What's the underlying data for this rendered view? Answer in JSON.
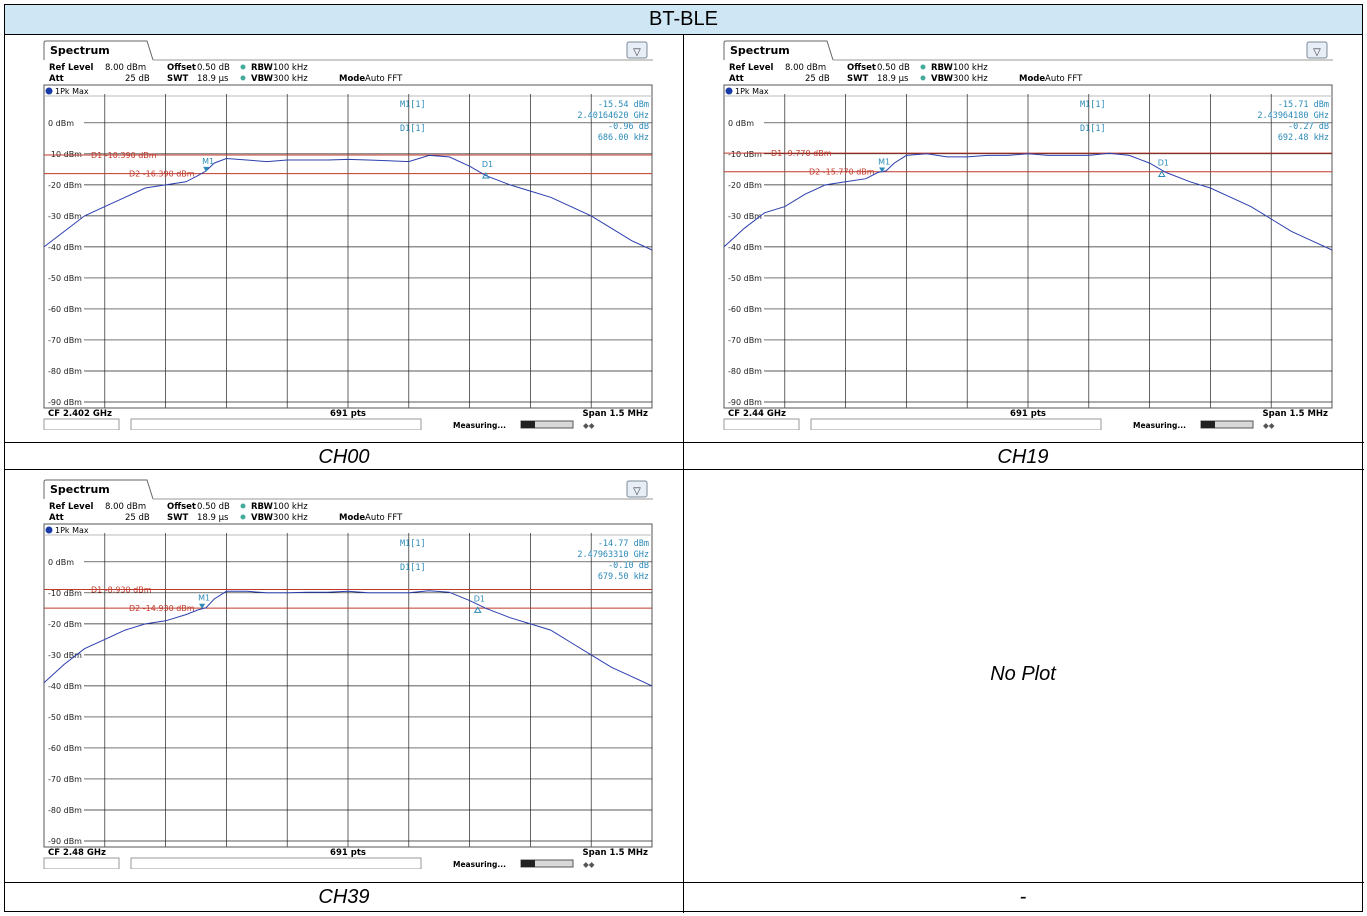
{
  "header": {
    "title": "BT-BLE"
  },
  "captions": [
    "CH00",
    "CH19",
    "CH39",
    "-"
  ],
  "no_plot_text": "No Plot",
  "chart_data": [
    {
      "type": "line",
      "tab": "Spectrum",
      "settings": {
        "ref_level_label": "Ref Level",
        "ref_level": "8.00 dBm",
        "offset_label": "Offset",
        "offset": "0.50 dB",
        "rbw_label": "RBW",
        "rbw": "100 kHz",
        "att_label": "Att",
        "att": "25 dB",
        "swt_label": "SWT",
        "swt": "18.9 µs",
        "vbw_label": "VBW",
        "vbw": "300 kHz",
        "mode_label": "Mode",
        "mode": "Auto FFT"
      },
      "trace_label": "1Pk Max",
      "ylim": [
        -90,
        8
      ],
      "y_ticks": [
        "0 dBm",
        "-10 dBm",
        "-20 dBm",
        "-30 dBm",
        "-40 dBm",
        "-50 dBm",
        "-60 dBm",
        "-70 dBm",
        "-80 dBm",
        "-90 dBm"
      ],
      "x_center_label": "CF 2.402 GHz",
      "points_label": "691 pts",
      "span_label": "Span 1.5 MHz",
      "marker_box": {
        "m1_label": "M1[1]",
        "m1_level": "-15.54 dBm",
        "m1_freq": "2.40164620 GHz",
        "d1_label": "D1[1]",
        "d1_level": "-0.96 dB",
        "d1_freq": "686.00 kHz"
      },
      "lines": [
        {
          "name": "D1",
          "text": "D1 -10.390 dBm",
          "level": -10.39
        },
        {
          "name": "D2",
          "text": "D2 -16.390 dBm",
          "level": -16.39
        }
      ],
      "markers": [
        {
          "name": "M1",
          "x": -0.35,
          "y": -15.5
        },
        {
          "name": "D1",
          "x": 0.34,
          "y": -16.5
        }
      ],
      "x": [
        -0.75,
        -0.7,
        -0.65,
        -0.6,
        -0.55,
        -0.5,
        -0.45,
        -0.4,
        -0.37,
        -0.35,
        -0.33,
        -0.3,
        -0.25,
        -0.2,
        -0.15,
        -0.1,
        -0.05,
        0,
        0.05,
        0.1,
        0.15,
        0.2,
        0.25,
        0.3,
        0.34,
        0.4,
        0.45,
        0.5,
        0.55,
        0.6,
        0.65,
        0.7,
        0.75
      ],
      "y": [
        -40,
        -35,
        -30,
        -27,
        -24,
        -21,
        -20,
        -19,
        -17,
        -15.5,
        -13,
        -11.5,
        -12,
        -12.5,
        -12,
        -12,
        -12,
        -11.8,
        -12,
        -12.2,
        -12.5,
        -10.5,
        -11,
        -14,
        -17,
        -20,
        -22,
        -24,
        -27,
        -30,
        -34,
        -38,
        -41
      ],
      "status": "Measuring..."
    },
    {
      "type": "line",
      "tab": "Spectrum",
      "settings": {
        "ref_level_label": "Ref Level",
        "ref_level": "8.00 dBm",
        "offset_label": "Offset",
        "offset": "0.50 dB",
        "rbw_label": "RBW",
        "rbw": "100 kHz",
        "att_label": "Att",
        "att": "25 dB",
        "swt_label": "SWT",
        "swt": "18.9 µs",
        "vbw_label": "VBW",
        "vbw": "300 kHz",
        "mode_label": "Mode",
        "mode": "Auto FFT"
      },
      "trace_label": "1Pk Max",
      "ylim": [
        -90,
        8
      ],
      "y_ticks": [
        "0 dBm",
        "-10 dBm",
        "-20 dBm",
        "-30 dBm",
        "-40 dBm",
        "-50 dBm",
        "-60 dBm",
        "-70 dBm",
        "-80 dBm",
        "-90 dBm"
      ],
      "x_center_label": "CF 2.44 GHz",
      "points_label": "691 pts",
      "span_label": "Span 1.5 MHz",
      "marker_box": {
        "m1_label": "M1[1]",
        "m1_level": "-15.71 dBm",
        "m1_freq": "2.43964180 GHz",
        "d1_label": "D1[1]",
        "d1_level": "-0.27 dB",
        "d1_freq": "692.48 kHz"
      },
      "lines": [
        {
          "name": "D1",
          "text": "D1 -9.770 dBm",
          "level": -9.77
        },
        {
          "name": "D2",
          "text": "D2 -15.770 dBm",
          "level": -15.77
        }
      ],
      "markers": [
        {
          "name": "M1",
          "x": -0.36,
          "y": -15.7
        },
        {
          "name": "D1",
          "x": 0.33,
          "y": -16.0
        }
      ],
      "x": [
        -0.75,
        -0.7,
        -0.65,
        -0.6,
        -0.55,
        -0.5,
        -0.45,
        -0.4,
        -0.37,
        -0.35,
        -0.33,
        -0.3,
        -0.25,
        -0.2,
        -0.15,
        -0.1,
        -0.05,
        0,
        0.05,
        0.1,
        0.15,
        0.2,
        0.25,
        0.3,
        0.34,
        0.4,
        0.45,
        0.5,
        0.55,
        0.6,
        0.65,
        0.7,
        0.75
      ],
      "y": [
        -40,
        -34,
        -29,
        -27,
        -23,
        -20,
        -19,
        -18,
        -16,
        -15.5,
        -13,
        -10.5,
        -10,
        -11,
        -11,
        -10.5,
        -10.5,
        -10,
        -10.5,
        -10.5,
        -10.5,
        -9.8,
        -10.5,
        -13,
        -16,
        -19,
        -21,
        -24,
        -27,
        -31,
        -35,
        -38,
        -41
      ],
      "status": "Measuring..."
    },
    {
      "type": "line",
      "tab": "Spectrum",
      "settings": {
        "ref_level_label": "Ref Level",
        "ref_level": "8.00 dBm",
        "offset_label": "Offset",
        "offset": "0.50 dB",
        "rbw_label": "RBW",
        "rbw": "100 kHz",
        "att_label": "Att",
        "att": "25 dB",
        "swt_label": "SWT",
        "swt": "18.9 µs",
        "vbw_label": "VBW",
        "vbw": "300 kHz",
        "mode_label": "Mode",
        "mode": "Auto FFT"
      },
      "trace_label": "1Pk Max",
      "ylim": [
        -90,
        8
      ],
      "y_ticks": [
        "0 dBm",
        "-10 dBm",
        "-20 dBm",
        "-30 dBm",
        "-40 dBm",
        "-50 dBm",
        "-60 dBm",
        "-70 dBm",
        "-80 dBm",
        "-90 dBm"
      ],
      "x_center_label": "CF 2.48 GHz",
      "points_label": "691 pts",
      "span_label": "Span 1.5 MHz",
      "marker_box": {
        "m1_label": "M1[1]",
        "m1_level": "-14.77 dBm",
        "m1_freq": "2.47963310 GHz",
        "d1_label": "D1[1]",
        "d1_level": "-0.10 dB",
        "d1_freq": "679.50 kHz"
      },
      "lines": [
        {
          "name": "D1",
          "text": "D1 -8.930 dBm",
          "level": -8.93
        },
        {
          "name": "D2",
          "text": "D2 -14.930 dBm",
          "level": -14.93
        }
      ],
      "markers": [
        {
          "name": "M1",
          "x": -0.36,
          "y": -14.8
        },
        {
          "name": "D1",
          "x": 0.32,
          "y": -15.0
        }
      ],
      "x": [
        -0.75,
        -0.7,
        -0.65,
        -0.6,
        -0.55,
        -0.5,
        -0.45,
        -0.4,
        -0.37,
        -0.35,
        -0.33,
        -0.3,
        -0.25,
        -0.2,
        -0.15,
        -0.1,
        -0.05,
        0,
        0.05,
        0.1,
        0.15,
        0.2,
        0.25,
        0.3,
        0.34,
        0.4,
        0.45,
        0.5,
        0.55,
        0.6,
        0.65,
        0.7,
        0.75
      ],
      "y": [
        -39,
        -33,
        -28,
        -25,
        -22,
        -20,
        -19,
        -17,
        -15.5,
        -14.8,
        -12,
        -9.5,
        -9.5,
        -10,
        -10,
        -9.8,
        -9.8,
        -9.5,
        -10,
        -10,
        -10,
        -9.3,
        -9.8,
        -12.5,
        -15,
        -18,
        -20,
        -22,
        -26,
        -30,
        -34,
        -37,
        -40
      ],
      "status": "Measuring..."
    }
  ]
}
